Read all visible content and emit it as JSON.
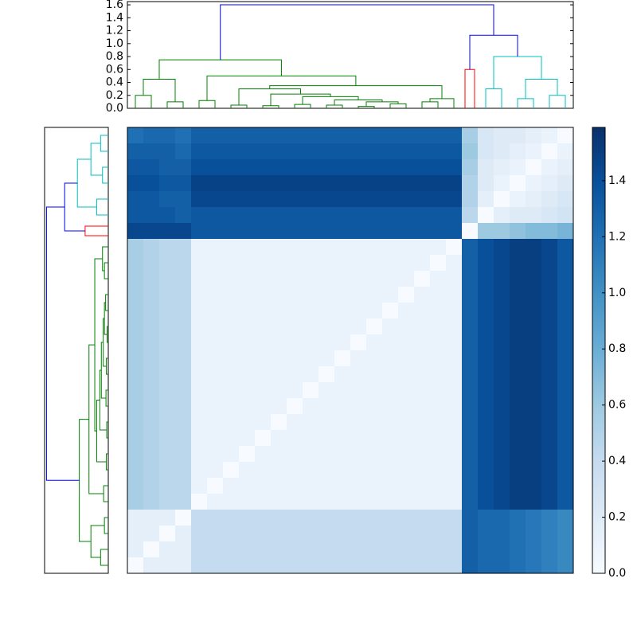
{
  "chart_data": {
    "type": "heatmap",
    "colormap": [
      "#f7fbff",
      "#deebf7",
      "#c6dbef",
      "#9ecae1",
      "#6baed6",
      "#4292c6",
      "#2171b5",
      "#08519c",
      "#08306b"
    ],
    "clim": [
      0,
      1.59
    ],
    "cticks": [
      {
        "value": 0,
        "label": "0.0"
      },
      {
        "value": 0.2,
        "label": "0.2"
      },
      {
        "value": 0.4,
        "label": "0.4"
      },
      {
        "value": 0.6,
        "label": "0.6"
      },
      {
        "value": 0.8,
        "label": "0.8"
      },
      {
        "value": 1,
        "label": "1.0"
      },
      {
        "value": 1.2,
        "label": "1.2"
      },
      {
        "value": 1.4,
        "label": "1.4"
      }
    ],
    "ylim": [
      0,
      1.65
    ],
    "yticks": [
      {
        "value": 0,
        "label": "0.0"
      },
      {
        "value": 0.2,
        "label": "0.2"
      },
      {
        "value": 0.4,
        "label": "0.4"
      },
      {
        "value": 0.6,
        "label": "0.6"
      },
      {
        "value": 0.8,
        "label": "0.8"
      },
      {
        "value": 1,
        "label": "1.0"
      },
      {
        "value": 1.2,
        "label": "1.2"
      },
      {
        "value": 1.4,
        "label": "1.4"
      },
      {
        "value": 1.6,
        "label": "1.6"
      }
    ],
    "links": [
      {
        "x": [
          0.5,
          0.5,
          1.5,
          1.5
        ],
        "y": [
          0,
          0.2,
          0.2,
          0
        ],
        "color": "#008000"
      },
      {
        "x": [
          2.5,
          2.5,
          3.5,
          3.5
        ],
        "y": [
          0,
          0.1,
          0.1,
          0
        ],
        "color": "#008000"
      },
      {
        "x": [
          1,
          1,
          3,
          3
        ],
        "y": [
          0.2,
          0.45,
          0.45,
          0.1
        ],
        "color": "#008000"
      },
      {
        "x": [
          4.5,
          4.5,
          5.5,
          5.5
        ],
        "y": [
          0,
          0.12,
          0.12,
          0
        ],
        "color": "#008000"
      },
      {
        "x": [
          6.5,
          6.5,
          7.5,
          7.5
        ],
        "y": [
          0,
          0.05,
          0.05,
          0
        ],
        "color": "#008000"
      },
      {
        "x": [
          8.5,
          8.5,
          9.5,
          9.5
        ],
        "y": [
          0,
          0.04,
          0.04,
          0
        ],
        "color": "#008000"
      },
      {
        "x": [
          10.5,
          10.5,
          11.5,
          11.5
        ],
        "y": [
          0,
          0.06,
          0.06,
          0
        ],
        "color": "#008000"
      },
      {
        "x": [
          12.5,
          12.5,
          13.5,
          13.5
        ],
        "y": [
          0,
          0.05,
          0.05,
          0
        ],
        "color": "#008000"
      },
      {
        "x": [
          14.5,
          14.5,
          15.5,
          15.5
        ],
        "y": [
          0,
          0.03,
          0.03,
          0
        ],
        "color": "#008000"
      },
      {
        "x": [
          16.5,
          16.5,
          17.5,
          17.5
        ],
        "y": [
          0,
          0.07,
          0.07,
          0
        ],
        "color": "#008000"
      },
      {
        "x": [
          18.5,
          18.5,
          19.5,
          19.5
        ],
        "y": [
          0,
          0.1,
          0.1,
          0
        ],
        "color": "#008000"
      },
      {
        "x": [
          19,
          19,
          20.5,
          20.5
        ],
        "y": [
          0.1,
          0.15,
          0.15,
          0
        ],
        "color": "#008000"
      },
      {
        "x": [
          15,
          15,
          17,
          17
        ],
        "y": [
          0.03,
          0.1,
          0.1,
          0.07
        ],
        "color": "#008000"
      },
      {
        "x": [
          13,
          13,
          16,
          16
        ],
        "y": [
          0.05,
          0.13,
          0.13,
          0.1
        ],
        "color": "#008000"
      },
      {
        "x": [
          11,
          11,
          14.5,
          14.5
        ],
        "y": [
          0.06,
          0.18,
          0.18,
          0.13
        ],
        "color": "#008000"
      },
      {
        "x": [
          9,
          9,
          12.75,
          12.75
        ],
        "y": [
          0.04,
          0.22,
          0.22,
          0.18
        ],
        "color": "#008000"
      },
      {
        "x": [
          7,
          7,
          10.875,
          10.875
        ],
        "y": [
          0.05,
          0.3,
          0.3,
          0.22
        ],
        "color": "#008000"
      },
      {
        "x": [
          8.9375,
          8.9375,
          19.75,
          19.75
        ],
        "y": [
          0.3,
          0.35,
          0.35,
          0.15
        ],
        "color": "#008000"
      },
      {
        "x": [
          5,
          5,
          14.34375,
          14.34375
        ],
        "y": [
          0.12,
          0.5,
          0.5,
          0.35
        ],
        "color": "#008000"
      },
      {
        "x": [
          2,
          2,
          9.671875,
          9.671875
        ],
        "y": [
          0.45,
          0.75,
          0.75,
          0.5
        ],
        "color": "#008000"
      },
      {
        "x": [
          21.2,
          21.2,
          21.8,
          21.8
        ],
        "y": [
          0,
          0.6,
          0.6,
          0
        ],
        "color": "#ff0000"
      },
      {
        "x": [
          22.5,
          22.5,
          23.5,
          23.5
        ],
        "y": [
          0,
          0.3,
          0.3,
          0
        ],
        "color": "#00bfbf"
      },
      {
        "x": [
          24.5,
          24.5,
          25.5,
          25.5
        ],
        "y": [
          0,
          0.15,
          0.15,
          0
        ],
        "color": "#00bfbf"
      },
      {
        "x": [
          26.5,
          26.5,
          27.5,
          27.5
        ],
        "y": [
          0,
          0.2,
          0.2,
          0
        ],
        "color": "#00bfbf"
      },
      {
        "x": [
          25,
          25,
          27,
          27
        ],
        "y": [
          0.15,
          0.45,
          0.45,
          0.2
        ],
        "color": "#00bfbf"
      },
      {
        "x": [
          23,
          23,
          26,
          26
        ],
        "y": [
          0.3,
          0.8,
          0.8,
          0.45
        ],
        "color": "#00bfbf"
      },
      {
        "x": [
          21.5,
          21.5,
          24.5,
          24.5
        ],
        "y": [
          0.6,
          1.13,
          1.13,
          0.8
        ],
        "color": "#0000ff"
      },
      {
        "x": [
          5.8359375,
          5.8359375,
          23,
          23
        ],
        "y": [
          0.75,
          1.6,
          1.6,
          1.13
        ],
        "color": "#0000ff"
      }
    ],
    "matrix": [
      [
        1.2,
        1.25,
        1.25,
        1.2,
        1.3,
        1.3,
        1.3,
        1.3,
        1.3,
        1.3,
        1.3,
        1.3,
        1.3,
        1.3,
        1.3,
        1.3,
        1.3,
        1.3,
        1.3,
        1.3,
        1.3,
        0.55,
        0.25,
        0.2,
        0.2,
        0.15,
        0.1,
        0
      ],
      [
        1.3,
        1.3,
        1.3,
        1.25,
        1.35,
        1.35,
        1.35,
        1.35,
        1.35,
        1.35,
        1.35,
        1.35,
        1.35,
        1.35,
        1.35,
        1.35,
        1.35,
        1.35,
        1.35,
        1.35,
        1.35,
        0.6,
        0.25,
        0.2,
        0.15,
        0.1,
        0,
        0.1
      ],
      [
        1.35,
        1.35,
        1.3,
        1.3,
        1.4,
        1.4,
        1.4,
        1.4,
        1.4,
        1.4,
        1.4,
        1.4,
        1.4,
        1.4,
        1.4,
        1.4,
        1.4,
        1.4,
        1.4,
        1.4,
        1.4,
        0.55,
        0.2,
        0.15,
        0.1,
        0,
        0.1,
        0.15
      ],
      [
        1.4,
        1.4,
        1.35,
        1.35,
        1.48,
        1.48,
        1.48,
        1.48,
        1.48,
        1.48,
        1.48,
        1.48,
        1.48,
        1.48,
        1.48,
        1.48,
        1.48,
        1.48,
        1.48,
        1.48,
        1.48,
        0.5,
        0.2,
        0.1,
        0,
        0.1,
        0.15,
        0.2
      ],
      [
        1.35,
        1.35,
        1.3,
        1.3,
        1.45,
        1.45,
        1.45,
        1.45,
        1.45,
        1.45,
        1.45,
        1.45,
        1.45,
        1.45,
        1.45,
        1.45,
        1.45,
        1.45,
        1.45,
        1.45,
        1.45,
        0.5,
        0.15,
        0,
        0.1,
        0.15,
        0.2,
        0.25
      ],
      [
        1.35,
        1.35,
        1.35,
        1.3,
        1.35,
        1.35,
        1.35,
        1.35,
        1.35,
        1.35,
        1.35,
        1.35,
        1.35,
        1.35,
        1.35,
        1.35,
        1.35,
        1.35,
        1.35,
        1.35,
        1.35,
        0.45,
        0,
        0.15,
        0.2,
        0.2,
        0.25,
        0.3
      ],
      [
        1.45,
        1.45,
        1.45,
        1.45,
        1.35,
        1.35,
        1.35,
        1.35,
        1.35,
        1.35,
        1.35,
        1.35,
        1.35,
        1.35,
        1.35,
        1.35,
        1.35,
        1.35,
        1.35,
        1.35,
        1.35,
        0,
        0.6,
        0.6,
        0.65,
        0.7,
        0.7,
        0.75
      ],
      [
        0.55,
        0.5,
        0.45,
        0.45,
        0.1,
        0.1,
        0.1,
        0.1,
        0.1,
        0.1,
        0.1,
        0.1,
        0.1,
        0.1,
        0.1,
        0.1,
        0.1,
        0.1,
        0.1,
        0.1,
        0,
        1.3,
        1.4,
        1.45,
        1.5,
        1.5,
        1.45,
        1.35
      ],
      [
        0.55,
        0.5,
        0.45,
        0.45,
        0.1,
        0.1,
        0.1,
        0.1,
        0.1,
        0.1,
        0.1,
        0.1,
        0.1,
        0.1,
        0.1,
        0.1,
        0.1,
        0.1,
        0.1,
        0,
        0.1,
        1.3,
        1.4,
        1.45,
        1.5,
        1.5,
        1.45,
        1.35
      ],
      [
        0.55,
        0.5,
        0.45,
        0.45,
        0.1,
        0.1,
        0.1,
        0.1,
        0.1,
        0.1,
        0.1,
        0.1,
        0.1,
        0.1,
        0.1,
        0.1,
        0.1,
        0.1,
        0,
        0.1,
        0.1,
        1.3,
        1.4,
        1.45,
        1.5,
        1.5,
        1.45,
        1.35
      ],
      [
        0.55,
        0.5,
        0.45,
        0.45,
        0.1,
        0.1,
        0.1,
        0.1,
        0.1,
        0.1,
        0.1,
        0.1,
        0.1,
        0.1,
        0.1,
        0.1,
        0.1,
        0,
        0.1,
        0.1,
        0.1,
        1.3,
        1.4,
        1.45,
        1.5,
        1.5,
        1.45,
        1.35
      ],
      [
        0.55,
        0.5,
        0.45,
        0.45,
        0.1,
        0.1,
        0.1,
        0.1,
        0.1,
        0.1,
        0.1,
        0.1,
        0.1,
        0.1,
        0.1,
        0.1,
        0,
        0.1,
        0.1,
        0.1,
        0.1,
        1.3,
        1.4,
        1.45,
        1.5,
        1.5,
        1.45,
        1.35
      ],
      [
        0.55,
        0.5,
        0.45,
        0.45,
        0.1,
        0.1,
        0.1,
        0.1,
        0.1,
        0.1,
        0.1,
        0.1,
        0.1,
        0.1,
        0.1,
        0,
        0.1,
        0.1,
        0.1,
        0.1,
        0.1,
        1.3,
        1.4,
        1.45,
        1.5,
        1.5,
        1.45,
        1.35
      ],
      [
        0.55,
        0.5,
        0.45,
        0.45,
        0.1,
        0.1,
        0.1,
        0.1,
        0.1,
        0.1,
        0.1,
        0.1,
        0.1,
        0.1,
        0,
        0.1,
        0.1,
        0.1,
        0.1,
        0.1,
        0.1,
        1.3,
        1.4,
        1.45,
        1.5,
        1.5,
        1.45,
        1.35
      ],
      [
        0.55,
        0.5,
        0.45,
        0.45,
        0.1,
        0.1,
        0.1,
        0.1,
        0.1,
        0.1,
        0.1,
        0.1,
        0.1,
        0,
        0.1,
        0.1,
        0.1,
        0.1,
        0.1,
        0.1,
        0.1,
        1.3,
        1.4,
        1.45,
        1.5,
        1.5,
        1.45,
        1.35
      ],
      [
        0.55,
        0.5,
        0.45,
        0.45,
        0.1,
        0.1,
        0.1,
        0.1,
        0.1,
        0.1,
        0.1,
        0.1,
        0,
        0.1,
        0.1,
        0.1,
        0.1,
        0.1,
        0.1,
        0.1,
        0.1,
        1.3,
        1.4,
        1.45,
        1.5,
        1.5,
        1.45,
        1.35
      ],
      [
        0.55,
        0.5,
        0.45,
        0.45,
        0.1,
        0.1,
        0.1,
        0.1,
        0.1,
        0.1,
        0.1,
        0,
        0.1,
        0.1,
        0.1,
        0.1,
        0.1,
        0.1,
        0.1,
        0.1,
        0.1,
        1.3,
        1.4,
        1.45,
        1.5,
        1.5,
        1.45,
        1.35
      ],
      [
        0.55,
        0.5,
        0.45,
        0.45,
        0.1,
        0.1,
        0.1,
        0.1,
        0.1,
        0.1,
        0,
        0.1,
        0.1,
        0.1,
        0.1,
        0.1,
        0.1,
        0.1,
        0.1,
        0.1,
        0.1,
        1.3,
        1.4,
        1.45,
        1.5,
        1.5,
        1.45,
        1.35
      ],
      [
        0.55,
        0.5,
        0.45,
        0.45,
        0.1,
        0.1,
        0.1,
        0.1,
        0.1,
        0,
        0.1,
        0.1,
        0.1,
        0.1,
        0.1,
        0.1,
        0.1,
        0.1,
        0.1,
        0.1,
        0.1,
        1.3,
        1.4,
        1.45,
        1.5,
        1.5,
        1.45,
        1.35
      ],
      [
        0.55,
        0.5,
        0.45,
        0.45,
        0.1,
        0.1,
        0.1,
        0.1,
        0,
        0.1,
        0.1,
        0.1,
        0.1,
        0.1,
        0.1,
        0.1,
        0.1,
        0.1,
        0.1,
        0.1,
        0.1,
        1.3,
        1.4,
        1.45,
        1.5,
        1.5,
        1.45,
        1.35
      ],
      [
        0.55,
        0.5,
        0.45,
        0.45,
        0.1,
        0.1,
        0.1,
        0,
        0.1,
        0.1,
        0.1,
        0.1,
        0.1,
        0.1,
        0.1,
        0.1,
        0.1,
        0.1,
        0.1,
        0.1,
        0.1,
        1.3,
        1.4,
        1.45,
        1.5,
        1.5,
        1.45,
        1.35
      ],
      [
        0.55,
        0.5,
        0.45,
        0.45,
        0.1,
        0.1,
        0,
        0.1,
        0.1,
        0.1,
        0.1,
        0.1,
        0.1,
        0.1,
        0.1,
        0.1,
        0.1,
        0.1,
        0.1,
        0.1,
        0.1,
        1.3,
        1.4,
        1.45,
        1.5,
        1.5,
        1.45,
        1.35
      ],
      [
        0.55,
        0.5,
        0.45,
        0.45,
        0.1,
        0,
        0.1,
        0.1,
        0.1,
        0.1,
        0.1,
        0.1,
        0.1,
        0.1,
        0.1,
        0.1,
        0.1,
        0.1,
        0.1,
        0.1,
        0.1,
        1.3,
        1.4,
        1.45,
        1.5,
        1.5,
        1.45,
        1.35
      ],
      [
        0.55,
        0.5,
        0.45,
        0.45,
        0,
        0.1,
        0.1,
        0.1,
        0.1,
        0.1,
        0.1,
        0.1,
        0.1,
        0.1,
        0.1,
        0.1,
        0.1,
        0.1,
        0.1,
        0.1,
        0.1,
        1.3,
        1.4,
        1.45,
        1.5,
        1.5,
        1.45,
        1.35
      ],
      [
        0.15,
        0.15,
        0.15,
        0,
        0.4,
        0.4,
        0.4,
        0.4,
        0.4,
        0.4,
        0.4,
        0.4,
        0.4,
        0.4,
        0.4,
        0.4,
        0.4,
        0.4,
        0.4,
        0.4,
        0.4,
        1.3,
        1.25,
        1.25,
        1.2,
        1.15,
        1.1,
        1.05
      ],
      [
        0.15,
        0.15,
        0,
        0.15,
        0.4,
        0.4,
        0.4,
        0.4,
        0.4,
        0.4,
        0.4,
        0.4,
        0.4,
        0.4,
        0.4,
        0.4,
        0.4,
        0.4,
        0.4,
        0.4,
        0.4,
        1.3,
        1.25,
        1.25,
        1.2,
        1.15,
        1.1,
        1.05
      ],
      [
        0.15,
        0,
        0.15,
        0.15,
        0.4,
        0.4,
        0.4,
        0.4,
        0.4,
        0.4,
        0.4,
        0.4,
        0.4,
        0.4,
        0.4,
        0.4,
        0.4,
        0.4,
        0.4,
        0.4,
        0.4,
        1.3,
        1.25,
        1.25,
        1.2,
        1.15,
        1.1,
        1.05
      ],
      [
        0,
        0.15,
        0.15,
        0.15,
        0.4,
        0.4,
        0.4,
        0.4,
        0.4,
        0.4,
        0.4,
        0.4,
        0.4,
        0.4,
        0.4,
        0.4,
        0.4,
        0.4,
        0.4,
        0.4,
        0.4,
        1.3,
        1.25,
        1.25,
        1.2,
        1.15,
        1.1,
        1.05
      ]
    ]
  }
}
